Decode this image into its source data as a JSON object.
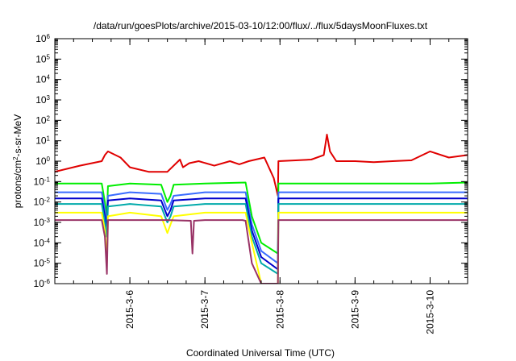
{
  "chart_data": {
    "type": "line",
    "title": "/data/run/goesPlots/archive/2015-03-10/12:00/flux/../flux/5daysMoonFluxes.txt",
    "xlabel": "Coordinated Universal Time (UTC)",
    "ylabel": {
      "main": "protons/cm",
      "sup": "2",
      "rest": "-s-sr-MeV"
    },
    "xlim": [
      "2015-03-05T00:00",
      "2015-03-10T12:00"
    ],
    "ylim": [
      1e-06,
      1000000.0
    ],
    "yscale": "log",
    "grid": false,
    "x_ticks": [
      {
        "label": "2015-3-6",
        "x": "2015-03-06T00:00"
      },
      {
        "label": "2015-3-7",
        "x": "2015-03-07T00:00"
      },
      {
        "label": "2015-3-8",
        "x": "2015-03-08T00:00"
      },
      {
        "label": "2015-3-9",
        "x": "2015-03-09T00:00"
      },
      {
        "label": "2015-3-10",
        "x": "2015-03-10T00:00"
      }
    ],
    "y_ticks": [
      {
        "base": "10",
        "exp": "-6",
        "value": 1e-06
      },
      {
        "base": "10",
        "exp": "-5",
        "value": 1e-05
      },
      {
        "base": "10",
        "exp": "-4",
        "value": 0.0001
      },
      {
        "base": "10",
        "exp": "-3",
        "value": 0.001
      },
      {
        "base": "10",
        "exp": "-2",
        "value": 0.01
      },
      {
        "base": "10",
        "exp": "-1",
        "value": 0.1
      },
      {
        "base": "10",
        "exp": "0",
        "value": 1
      },
      {
        "base": "10",
        "exp": "1",
        "value": 10
      },
      {
        "base": "10",
        "exp": "2",
        "value": 100
      },
      {
        "base": "10",
        "exp": "3",
        "value": 1000
      },
      {
        "base": "10",
        "exp": "4",
        "value": 10000
      },
      {
        "base": "10",
        "exp": "5",
        "value": 100000
      },
      {
        "base": "10",
        "exp": "6",
        "value": 1000000
      }
    ],
    "series": [
      {
        "color": "#e00000",
        "x": [
          "2015-03-05T00:00",
          "2015-03-05T08:00",
          "2015-03-05T15:00",
          "2015-03-05T16:00",
          "2015-03-05T17:00",
          "2015-03-05T21:00",
          "2015-03-06T00:00",
          "2015-03-06T06:00",
          "2015-03-06T12:00",
          "2015-03-06T16:00",
          "2015-03-06T17:00",
          "2015-03-06T19:00",
          "2015-03-06T22:00",
          "2015-03-07T03:00",
          "2015-03-07T08:00",
          "2015-03-07T11:00",
          "2015-03-07T14:00",
          "2015-03-07T19:00",
          "2015-03-07T22:00",
          "2015-03-07T23:20",
          "2015-03-07T23:30",
          "2015-03-08T05:00",
          "2015-03-08T10:00",
          "2015-03-08T14:00",
          "2015-03-08T15:00",
          "2015-03-08T16:00",
          "2015-03-08T18:00",
          "2015-03-09T00:00",
          "2015-03-09T06:00",
          "2015-03-09T12:00",
          "2015-03-09T18:00",
          "2015-03-10T00:00",
          "2015-03-10T06:00",
          "2015-03-10T12:00"
        ],
        "y": [
          0.3,
          0.6,
          1.0,
          2.0,
          3.0,
          1.5,
          0.5,
          0.3,
          0.3,
          1.2,
          0.5,
          0.8,
          1.0,
          0.6,
          1.0,
          0.7,
          1.0,
          1.5,
          0.15,
          0.02,
          1.0,
          1.1,
          1.2,
          2.0,
          20,
          3.0,
          1.0,
          1.0,
          0.9,
          1.0,
          1.1,
          3.0,
          1.5,
          2.0
        ]
      },
      {
        "color": "#00ee00",
        "x": [
          "2015-03-05T00:00",
          "2015-03-05T15:00",
          "2015-03-05T16:00",
          "2015-03-05T16:40",
          "2015-03-05T17:00",
          "2015-03-06T00:00",
          "2015-03-06T10:00",
          "2015-03-06T12:00",
          "2015-03-06T13:00",
          "2015-03-06T14:00",
          "2015-03-07T00:00",
          "2015-03-07T13:00",
          "2015-03-07T15:00",
          "2015-03-07T18:00",
          "2015-03-07T23:20",
          "2015-03-07T23:30",
          "2015-03-08T12:00",
          "2015-03-09T00:00",
          "2015-03-09T12:00",
          "2015-03-10T00:00",
          "2015-03-10T12:00"
        ],
        "y": [
          0.08,
          0.08,
          0.01,
          0.002,
          0.06,
          0.08,
          0.07,
          0.01,
          0.02,
          0.07,
          0.08,
          0.09,
          0.002,
          0.0001,
          3e-05,
          0.08,
          0.08,
          0.08,
          0.08,
          0.08,
          0.09
        ]
      },
      {
        "color": "#3a6cff",
        "x": [
          "2015-03-05T00:00",
          "2015-03-05T15:00",
          "2015-03-05T16:00",
          "2015-03-05T16:40",
          "2015-03-05T17:00",
          "2015-03-06T00:00",
          "2015-03-06T10:00",
          "2015-03-06T12:00",
          "2015-03-06T13:00",
          "2015-03-06T14:00",
          "2015-03-07T00:00",
          "2015-03-07T13:00",
          "2015-03-07T15:00",
          "2015-03-07T18:00",
          "2015-03-07T23:20",
          "2015-03-07T23:30",
          "2015-03-08T12:00",
          "2015-03-09T00:00",
          "2015-03-09T12:00",
          "2015-03-10T00:00",
          "2015-03-10T12:00"
        ],
        "y": [
          0.03,
          0.03,
          0.004,
          0.0008,
          0.02,
          0.03,
          0.025,
          0.004,
          0.008,
          0.02,
          0.03,
          0.03,
          0.0008,
          4e-05,
          1e-05,
          0.03,
          0.03,
          0.03,
          0.03,
          0.03,
          0.03
        ]
      },
      {
        "color": "#0000cc",
        "x": [
          "2015-03-05T00:00",
          "2015-03-05T15:00",
          "2015-03-05T16:00",
          "2015-03-05T16:40",
          "2015-03-05T17:00",
          "2015-03-06T00:00",
          "2015-03-06T10:00",
          "2015-03-06T12:00",
          "2015-03-06T13:00",
          "2015-03-06T14:00",
          "2015-03-07T00:00",
          "2015-03-07T13:00",
          "2015-03-07T15:00",
          "2015-03-07T18:00",
          "2015-03-07T23:20",
          "2015-03-07T23:30",
          "2015-03-08T12:00",
          "2015-03-09T00:00",
          "2015-03-09T12:00",
          "2015-03-10T00:00",
          "2015-03-10T12:00"
        ],
        "y": [
          0.015,
          0.015,
          0.002,
          0.0004,
          0.012,
          0.015,
          0.012,
          0.002,
          0.004,
          0.012,
          0.015,
          0.015,
          0.0004,
          2e-05,
          5e-06,
          0.015,
          0.015,
          0.015,
          0.015,
          0.015,
          0.015
        ]
      },
      {
        "color": "#00aaaa",
        "x": [
          "2015-03-05T00:00",
          "2015-03-05T15:00",
          "2015-03-05T16:00",
          "2015-03-05T16:40",
          "2015-03-05T17:00",
          "2015-03-06T00:00",
          "2015-03-06T10:00",
          "2015-03-06T12:00",
          "2015-03-06T13:00",
          "2015-03-06T14:00",
          "2015-03-07T00:00",
          "2015-03-07T13:00",
          "2015-03-07T15:00",
          "2015-03-07T18:00",
          "2015-03-07T23:20",
          "2015-03-07T23:30",
          "2015-03-08T12:00",
          "2015-03-09T00:00",
          "2015-03-09T12:00",
          "2015-03-10T00:00",
          "2015-03-10T12:00"
        ],
        "y": [
          0.008,
          0.008,
          0.001,
          0.0002,
          0.006,
          0.008,
          0.006,
          0.001,
          0.002,
          0.006,
          0.008,
          0.008,
          0.0002,
          1e-05,
          3e-06,
          0.008,
          0.008,
          0.008,
          0.008,
          0.008,
          0.008
        ]
      },
      {
        "color": "#ffff00",
        "x": [
          "2015-03-05T00:00",
          "2015-03-05T15:00",
          "2015-03-05T16:00",
          "2015-03-05T16:40",
          "2015-03-05T17:00",
          "2015-03-06T00:00",
          "2015-03-06T10:00",
          "2015-03-06T12:00",
          "2015-03-06T13:00",
          "2015-03-06T14:00",
          "2015-03-07T00:00",
          "2015-03-07T13:00",
          "2015-03-07T15:00",
          "2015-03-07T18:00",
          "2015-03-07T23:20",
          "2015-03-07T23:30",
          "2015-03-08T12:00",
          "2015-03-09T00:00",
          "2015-03-09T12:00",
          "2015-03-10T00:00",
          "2015-03-10T12:00"
        ],
        "y": [
          0.003,
          0.003,
          0.0004,
          1e-05,
          0.002,
          0.003,
          0.002,
          0.0003,
          0.0008,
          0.002,
          0.003,
          0.003,
          0.0001,
          1e-06,
          1e-06,
          0.003,
          0.003,
          0.003,
          0.003,
          0.003,
          0.003
        ]
      },
      {
        "color": "#993366",
        "x": [
          "2015-03-05T00:00",
          "2015-03-05T15:00",
          "2015-03-05T16:00",
          "2015-03-05T16:40",
          "2015-03-05T17:00",
          "2015-03-06T00:00",
          "2015-03-06T12:00",
          "2015-03-06T19:30",
          "2015-03-06T20:00",
          "2015-03-06T20:30",
          "2015-03-07T00:00",
          "2015-03-07T12:00",
          "2015-03-07T13:00",
          "2015-03-07T15:00",
          "2015-03-07T18:00",
          "2015-03-07T23:20",
          "2015-03-07T23:30",
          "2015-03-08T12:00",
          "2015-03-09T00:00",
          "2015-03-09T12:00",
          "2015-03-10T00:00",
          "2015-03-10T12:00"
        ],
        "y": [
          0.0013,
          0.0013,
          0.0002,
          3e-06,
          0.0013,
          0.0013,
          0.0013,
          0.0012,
          3e-05,
          0.0012,
          0.0013,
          0.0013,
          0.0012,
          1e-05,
          1e-06,
          1e-06,
          0.0013,
          0.0013,
          0.0013,
          0.0013,
          0.0013,
          0.0013
        ]
      }
    ]
  }
}
